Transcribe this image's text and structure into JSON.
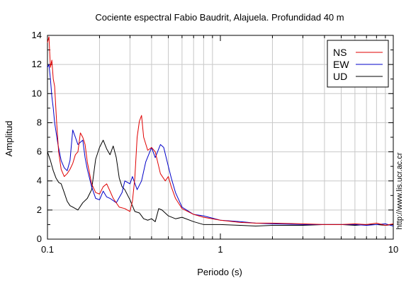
{
  "chart_data": {
    "type": "line",
    "title": "Cociente espectral Fabio Baudrit, Alajuela. Profundidad 40 m",
    "xlabel": "Periodo (s)",
    "ylabel": "Amplitud",
    "x_scale": "log",
    "xlim": [
      0.1,
      10
    ],
    "ylim": [
      0,
      14
    ],
    "x_ticks": [
      0.1,
      1,
      10
    ],
    "x_tick_labels": [
      "0.1",
      "1",
      "10"
    ],
    "y_ticks": [
      0,
      2,
      4,
      6,
      8,
      10,
      12,
      14
    ],
    "y_tick_labels": [
      "0",
      "2",
      "4",
      "6",
      "8",
      "10",
      "12",
      "14"
    ],
    "grid": true,
    "legend_position": "top-right",
    "side_label": "http://www.lis.ucr.ac.cr",
    "series": [
      {
        "name": "NS",
        "color": "#e00000",
        "points": [
          [
            0.1,
            13.5
          ],
          [
            0.102,
            13.9
          ],
          [
            0.104,
            11.8
          ],
          [
            0.106,
            12.3
          ],
          [
            0.108,
            11.0
          ],
          [
            0.11,
            10.5
          ],
          [
            0.113,
            8.0
          ],
          [
            0.116,
            6.0
          ],
          [
            0.12,
            4.8
          ],
          [
            0.125,
            4.3
          ],
          [
            0.13,
            4.5
          ],
          [
            0.135,
            4.8
          ],
          [
            0.14,
            5.2
          ],
          [
            0.145,
            5.8
          ],
          [
            0.15,
            6.0
          ],
          [
            0.155,
            7.3
          ],
          [
            0.16,
            7.0
          ],
          [
            0.165,
            6.5
          ],
          [
            0.17,
            5.3
          ],
          [
            0.18,
            3.8
          ],
          [
            0.19,
            3.2
          ],
          [
            0.2,
            3.1
          ],
          [
            0.21,
            3.6
          ],
          [
            0.22,
            3.8
          ],
          [
            0.23,
            3.3
          ],
          [
            0.24,
            2.8
          ],
          [
            0.26,
            2.2
          ],
          [
            0.28,
            2.1
          ],
          [
            0.3,
            1.9
          ],
          [
            0.31,
            2.6
          ],
          [
            0.32,
            4.2
          ],
          [
            0.33,
            7.0
          ],
          [
            0.34,
            8.1
          ],
          [
            0.35,
            8.5
          ],
          [
            0.36,
            7.0
          ],
          [
            0.38,
            6.1
          ],
          [
            0.4,
            6.3
          ],
          [
            0.42,
            6.0
          ],
          [
            0.45,
            4.5
          ],
          [
            0.48,
            4.0
          ],
          [
            0.5,
            4.3
          ],
          [
            0.52,
            3.6
          ],
          [
            0.55,
            2.8
          ],
          [
            0.6,
            2.1
          ],
          [
            0.7,
            1.7
          ],
          [
            0.8,
            1.5
          ],
          [
            1.0,
            1.3
          ],
          [
            1.3,
            1.15
          ],
          [
            1.6,
            1.1
          ],
          [
            2.0,
            1.1
          ],
          [
            3.0,
            1.05
          ],
          [
            4.0,
            1.0
          ],
          [
            5.0,
            1.0
          ],
          [
            6.0,
            1.05
          ],
          [
            7.0,
            1.0
          ],
          [
            8.0,
            1.1
          ],
          [
            9.0,
            0.95
          ],
          [
            10.0,
            1.05
          ]
        ]
      },
      {
        "name": "EW",
        "color": "#0000c8",
        "points": [
          [
            0.1,
            11.8
          ],
          [
            0.102,
            12.0
          ],
          [
            0.104,
            11.0
          ],
          [
            0.106,
            9.8
          ],
          [
            0.108,
            9.0
          ],
          [
            0.11,
            8.0
          ],
          [
            0.115,
            6.5
          ],
          [
            0.12,
            5.4
          ],
          [
            0.125,
            4.9
          ],
          [
            0.13,
            4.7
          ],
          [
            0.135,
            5.4
          ],
          [
            0.14,
            7.5
          ],
          [
            0.145,
            7.0
          ],
          [
            0.15,
            6.5
          ],
          [
            0.16,
            6.8
          ],
          [
            0.165,
            5.6
          ],
          [
            0.17,
            4.8
          ],
          [
            0.18,
            3.6
          ],
          [
            0.19,
            2.8
          ],
          [
            0.2,
            2.7
          ],
          [
            0.21,
            3.3
          ],
          [
            0.22,
            2.9
          ],
          [
            0.23,
            2.8
          ],
          [
            0.25,
            2.5
          ],
          [
            0.27,
            3.2
          ],
          [
            0.28,
            4.0
          ],
          [
            0.3,
            3.8
          ],
          [
            0.31,
            4.3
          ],
          [
            0.33,
            3.4
          ],
          [
            0.35,
            4.0
          ],
          [
            0.37,
            5.3
          ],
          [
            0.4,
            6.3
          ],
          [
            0.42,
            5.6
          ],
          [
            0.45,
            6.5
          ],
          [
            0.47,
            6.3
          ],
          [
            0.5,
            5.0
          ],
          [
            0.52,
            4.2
          ],
          [
            0.55,
            3.2
          ],
          [
            0.6,
            2.2
          ],
          [
            0.7,
            1.7
          ],
          [
            0.8,
            1.6
          ],
          [
            1.0,
            1.3
          ],
          [
            1.3,
            1.2
          ],
          [
            1.6,
            1.1
          ],
          [
            2.0,
            1.05
          ],
          [
            3.0,
            1.0
          ],
          [
            4.0,
            1.0
          ],
          [
            5.0,
            1.0
          ],
          [
            6.0,
            1.0
          ],
          [
            7.0,
            0.95
          ],
          [
            8.0,
            1.0
          ],
          [
            9.0,
            1.05
          ],
          [
            10.0,
            0.9
          ]
        ]
      },
      {
        "name": "UD",
        "color": "#000000",
        "points": [
          [
            0.1,
            6.0
          ],
          [
            0.104,
            5.4
          ],
          [
            0.108,
            4.7
          ],
          [
            0.112,
            4.2
          ],
          [
            0.116,
            3.9
          ],
          [
            0.12,
            3.8
          ],
          [
            0.125,
            3.2
          ],
          [
            0.13,
            2.6
          ],
          [
            0.135,
            2.3
          ],
          [
            0.14,
            2.2
          ],
          [
            0.15,
            2.0
          ],
          [
            0.16,
            2.5
          ],
          [
            0.17,
            2.8
          ],
          [
            0.18,
            3.4
          ],
          [
            0.19,
            5.5
          ],
          [
            0.2,
            6.3
          ],
          [
            0.21,
            6.8
          ],
          [
            0.22,
            6.2
          ],
          [
            0.23,
            5.8
          ],
          [
            0.24,
            6.4
          ],
          [
            0.25,
            5.6
          ],
          [
            0.26,
            4.2
          ],
          [
            0.27,
            3.6
          ],
          [
            0.28,
            3.4
          ],
          [
            0.3,
            2.7
          ],
          [
            0.32,
            1.9
          ],
          [
            0.34,
            1.8
          ],
          [
            0.36,
            1.4
          ],
          [
            0.38,
            1.3
          ],
          [
            0.4,
            1.4
          ],
          [
            0.42,
            1.2
          ],
          [
            0.44,
            2.1
          ],
          [
            0.46,
            2.0
          ],
          [
            0.5,
            1.6
          ],
          [
            0.55,
            1.4
          ],
          [
            0.6,
            1.5
          ],
          [
            0.7,
            1.2
          ],
          [
            0.8,
            1.0
          ],
          [
            1.0,
            1.0
          ],
          [
            1.3,
            0.95
          ],
          [
            1.6,
            0.9
          ],
          [
            2.0,
            0.95
          ],
          [
            3.0,
            0.95
          ],
          [
            4.0,
            1.0
          ],
          [
            5.0,
            1.0
          ],
          [
            6.0,
            0.95
          ],
          [
            7.0,
            1.0
          ],
          [
            8.0,
            1.0
          ],
          [
            9.0,
            0.95
          ],
          [
            10.0,
            1.0
          ]
        ]
      }
    ]
  }
}
